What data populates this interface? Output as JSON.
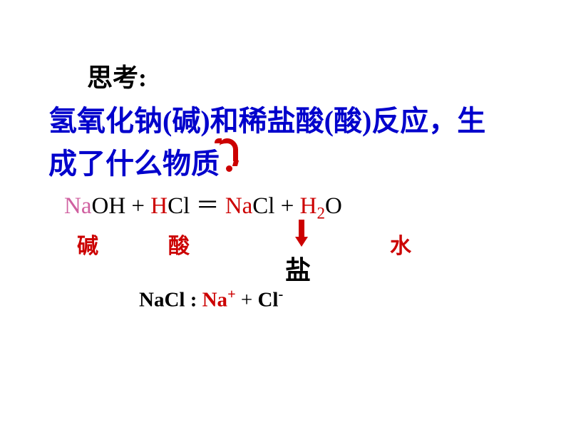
{
  "colors": {
    "blue": "#0000cc",
    "red": "#cc0000",
    "pink": "#d060a0",
    "black": "#000000",
    "background": "#ffffff"
  },
  "fonts": {
    "cjk": "SimSun",
    "latin": "Times New Roman",
    "title_size": 36,
    "question_size": 40,
    "equation_size": 33,
    "label_size": 30,
    "salt_label_size": 36,
    "ion_size": 29
  },
  "title": "思考:",
  "question_line1": "氢氧化钠(碱)和稀盐酸(酸)反应，生",
  "question_line2": "成了什么物质",
  "equation": {
    "na_pink": "Na",
    "oh": "OH",
    "plus1": "  +  ",
    "h_red": "H",
    "cl": "Cl",
    "equals": "  ＝   ",
    "na_red": "Na",
    "cl2": "Cl",
    "plus2": "  +  ",
    "h2_red": "H",
    "sub2": "2",
    "o": "O"
  },
  "labels": {
    "base": "碱",
    "acid": "酸",
    "water": "水",
    "salt": "盐"
  },
  "ion": {
    "prefix": "NaCl :  ",
    "na": "Na",
    "plus_sup": "+",
    "plus_mid": "  +   ",
    "cl": "Cl",
    "minus_sup": "-"
  }
}
